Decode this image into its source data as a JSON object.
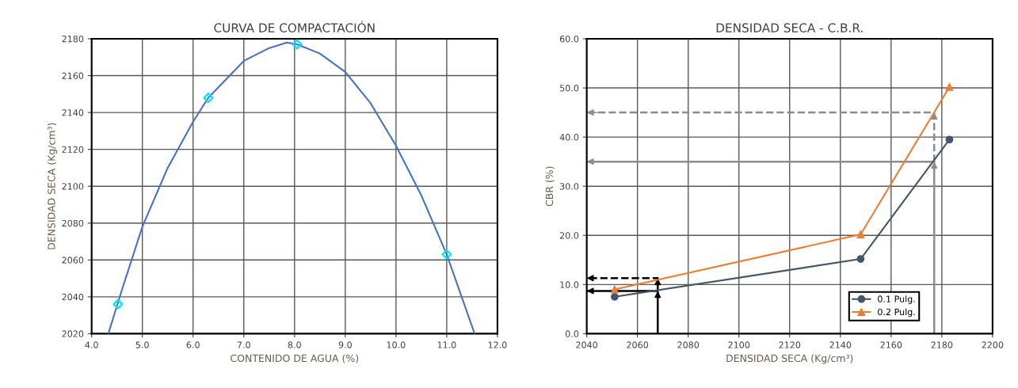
{
  "chart_data": [
    {
      "type": "line",
      "title": "CURVA DE COMPACTACIÓN",
      "xlabel": "CONTENIDO DE AGUA (%)",
      "ylabel": "DENSIDAD SECA (Kg/cm³)",
      "xlim": [
        4,
        12
      ],
      "xticks": [
        {
          "value": 4,
          "label": "4.0"
        },
        {
          "value": 5,
          "label": "5.0"
        },
        {
          "value": 6,
          "label": "6.0"
        },
        {
          "value": 7,
          "label": "7.0"
        },
        {
          "value": 8,
          "label": "8.0"
        },
        {
          "value": 9,
          "label": "9.0"
        },
        {
          "value": 10,
          "label": "10.0"
        },
        {
          "value": 11,
          "label": "11.0"
        },
        {
          "value": 12,
          "label": "12.0"
        }
      ],
      "ylim": [
        2020,
        2180
      ],
      "yticks": [
        2020,
        2040,
        2060,
        2080,
        2100,
        2120,
        2140,
        2160,
        2180
      ],
      "grid": true,
      "legend": false,
      "series": [
        {
          "color": "#4472c4",
          "marker": "none",
          "line_style": "solid",
          "x": [
            4.33,
            4.6,
            5.0,
            5.5,
            6.0,
            6.3,
            7.0,
            7.5,
            7.85,
            8.05,
            8.5,
            9.0,
            9.5,
            10.0,
            10.5,
            11.0,
            11.55
          ],
          "values": [
            2020,
            2044,
            2078,
            2110,
            2135,
            2148,
            2168,
            2175,
            2178,
            2177,
            2172,
            2162,
            2145,
            2122,
            2095,
            2063,
            2020
          ]
        },
        {
          "type": "scatter",
          "color": "#00e5ff",
          "marker": "diamond",
          "x": [
            4.52,
            6.3,
            8.05,
            11.0
          ],
          "values": [
            2036,
            2148,
            2177,
            2063
          ]
        }
      ]
    },
    {
      "type": "line",
      "title": "DENSIDAD SECA - C.B.R.",
      "xlabel": "DENSIDAD SECA (Kg/cm³)",
      "ylabel": "CBR (%)",
      "xlim": [
        2040,
        2200
      ],
      "xticks": [
        2040,
        2060,
        2080,
        2100,
        2120,
        2140,
        2160,
        2180,
        2200
      ],
      "ylim": [
        0,
        60
      ],
      "yticks": [
        {
          "value": 0,
          "label": "0.0"
        },
        {
          "value": 10,
          "label": "10.0"
        },
        {
          "value": 20,
          "label": "20.0"
        },
        {
          "value": 30,
          "label": "30.0"
        },
        {
          "value": 40,
          "label": "40.0"
        },
        {
          "value": 50,
          "label": "50.0"
        },
        {
          "value": 60,
          "label": "60.0"
        }
      ],
      "grid": true,
      "legend": "bottom right",
      "series": [
        {
          "name": "0.1 Pulg.",
          "color": "#44546a",
          "marker": "circle",
          "line_style": "solid",
          "x": [
            2051,
            2148,
            2183
          ],
          "values": [
            7.5,
            15.2,
            39.5
          ]
        },
        {
          "name": "0.2 Pulg.",
          "color": "#ed7d31",
          "marker": "triangle",
          "line_style": "solid",
          "x": [
            2051,
            2148,
            2183
          ],
          "values": [
            9.0,
            20.2,
            50.2
          ]
        },
        {
          "color": "#000000",
          "marker": "none",
          "line_style": "solid",
          "x": [
            2068,
            2068,
            2040
          ],
          "values": [
            0,
            8.7,
            8.7
          ]
        },
        {
          "color": "#000000",
          "marker": "none",
          "line_style": "dashed",
          "x": [
            2068,
            2068,
            2040
          ],
          "values": [
            8.7,
            11.3,
            11.3
          ]
        },
        {
          "color": "#8c8c8c",
          "marker": "none",
          "line_style": "solid",
          "x": [
            2177,
            2177,
            2040
          ],
          "values": [
            0,
            35,
            35
          ]
        },
        {
          "color": "#8c8c8c",
          "marker": "none",
          "line_style": "dashed",
          "x": [
            2177,
            2177,
            2040
          ],
          "values": [
            35,
            45,
            45
          ]
        }
      ]
    }
  ]
}
